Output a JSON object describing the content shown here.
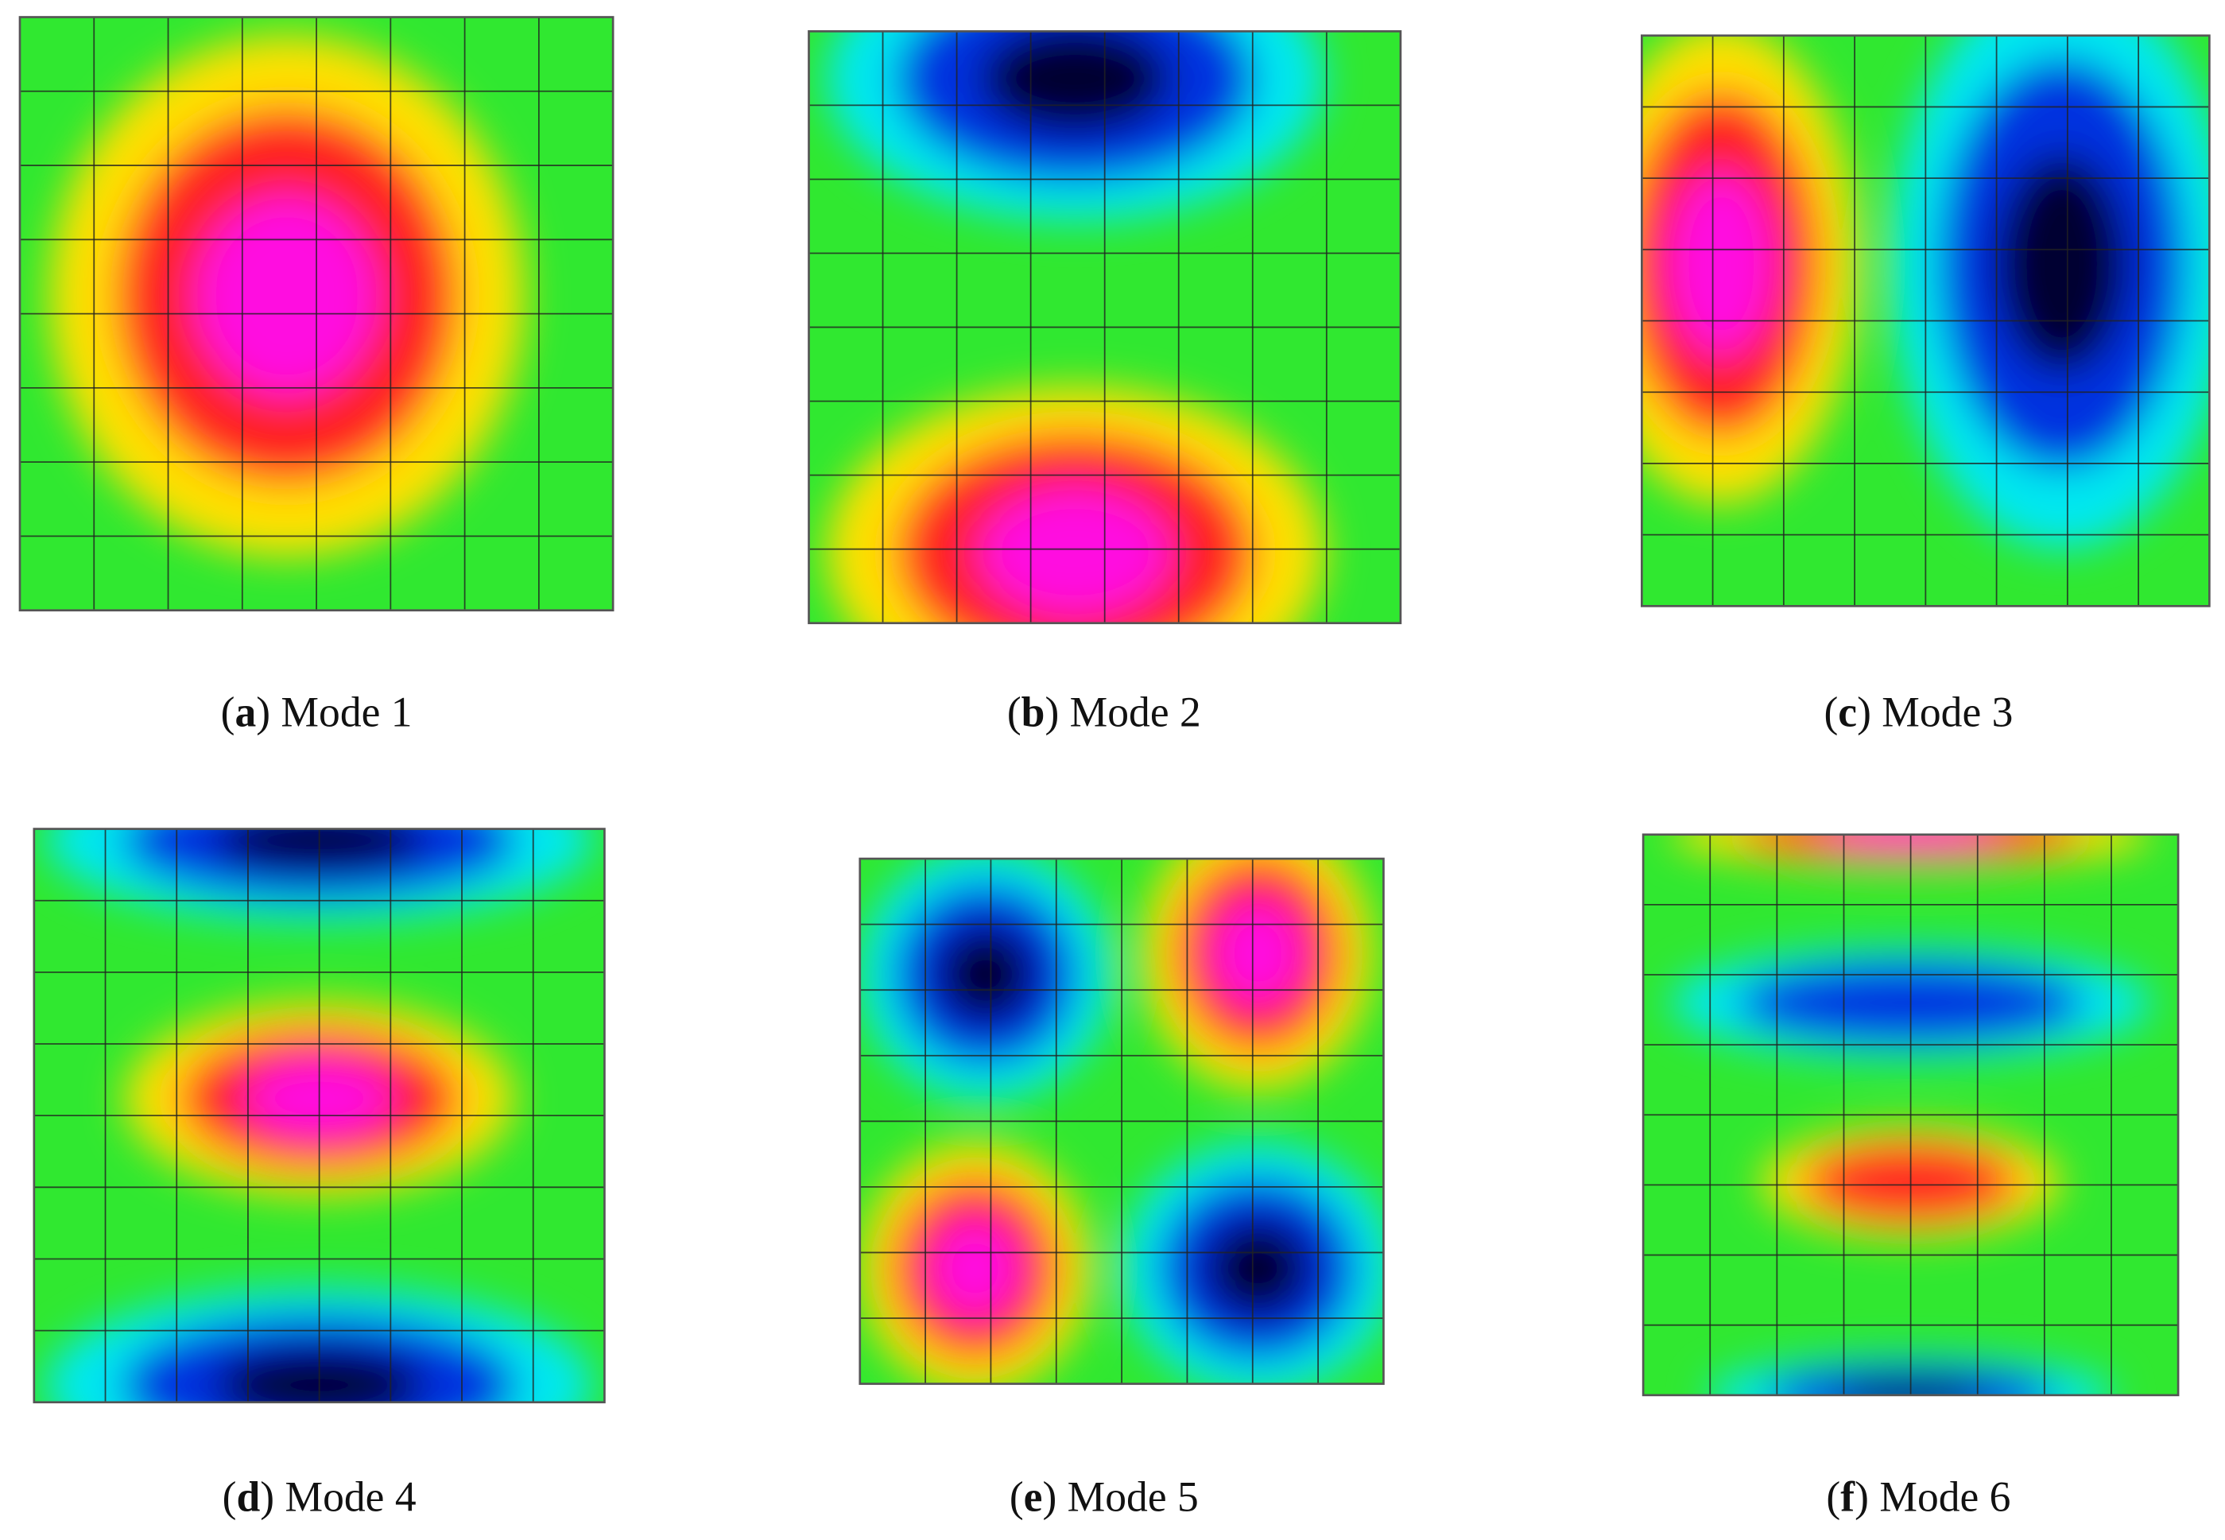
{
  "panels": [
    {
      "open": "(",
      "letter": "a",
      "rest": ") Mode 1"
    },
    {
      "open": "(",
      "letter": "b",
      "rest": ") Mode 2"
    },
    {
      "open": "(",
      "letter": "c",
      "rest": ") Mode 3"
    },
    {
      "open": "(",
      "letter": "d",
      "rest": ") Mode 4"
    },
    {
      "open": "(",
      "letter": "e",
      "rest": ") Mode 5"
    },
    {
      "open": "(",
      "letter": "f",
      "rest": ") Mode 6"
    }
  ]
}
